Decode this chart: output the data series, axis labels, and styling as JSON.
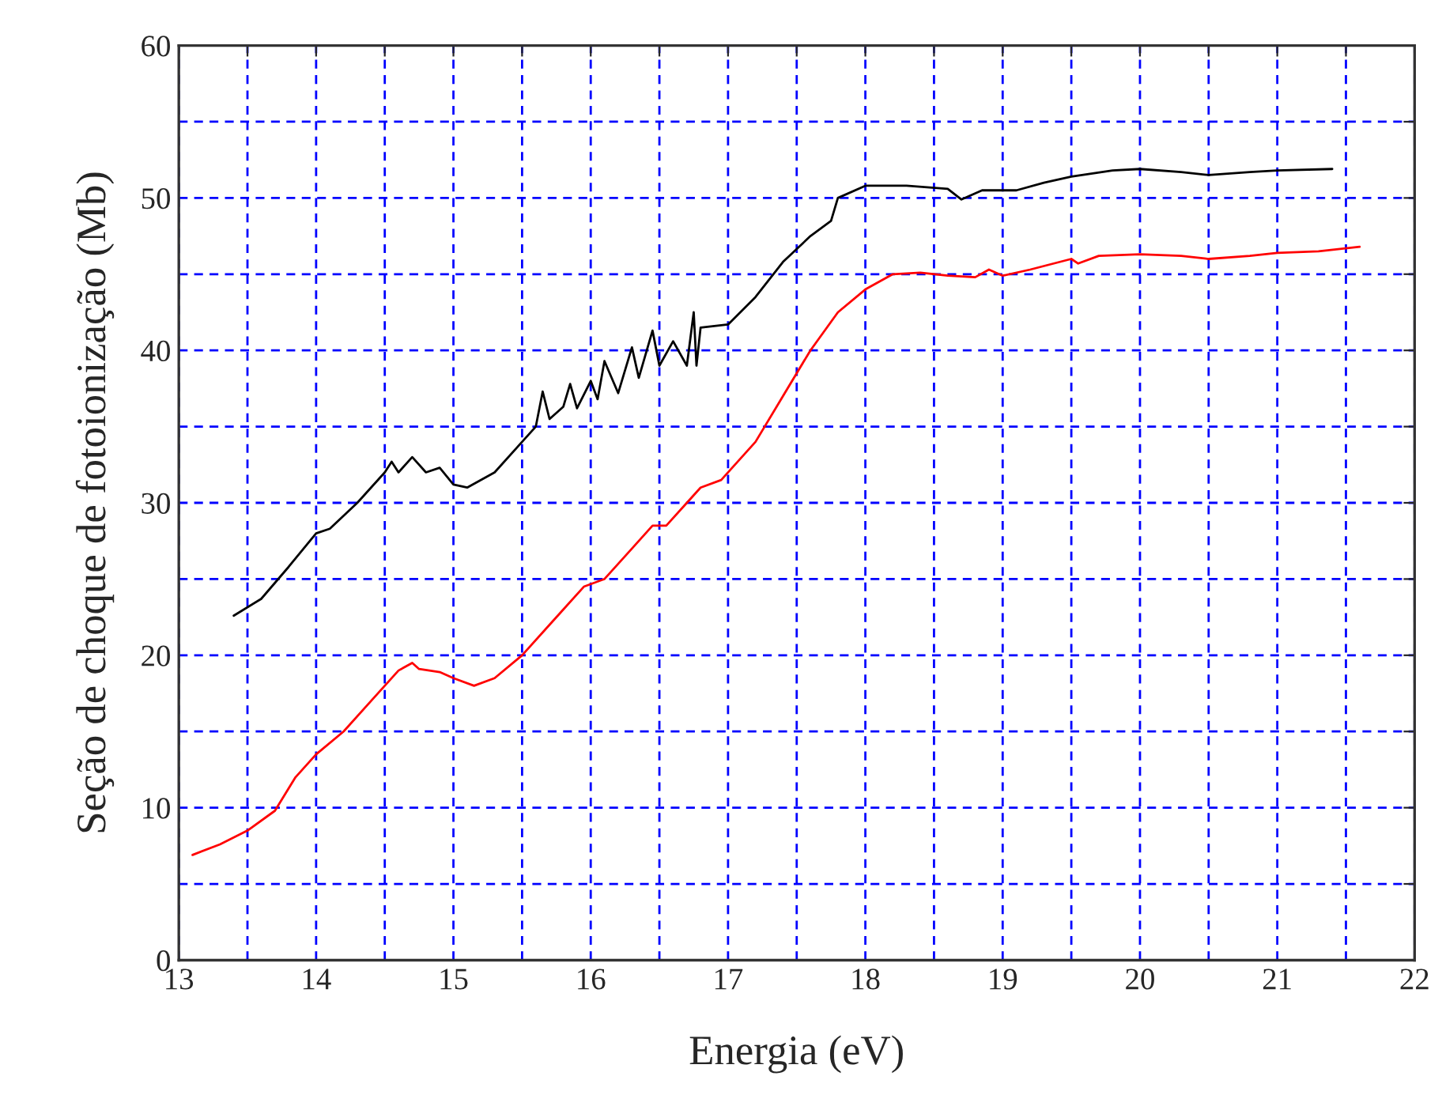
{
  "chart_data": {
    "type": "line",
    "xlabel": "Energia (eV)",
    "ylabel": "Seção de choque de fotoionização (Mb)",
    "xlim": [
      13,
      22
    ],
    "ylim": [
      0,
      60
    ],
    "xticks": [
      13,
      {
        "value": 13.5,
        "label": null
      },
      14,
      {
        "value": 14.5,
        "label": null
      },
      15,
      {
        "value": 15.5,
        "label": null
      },
      16,
      {
        "value": 16.5,
        "label": null
      },
      17,
      {
        "value": 17.5,
        "label": null
      },
      18,
      {
        "value": 18.5,
        "label": null
      },
      19,
      {
        "value": 19.5,
        "label": null
      },
      20,
      {
        "value": 20.5,
        "label": null
      },
      21,
      {
        "value": 21.5,
        "label": null
      },
      22
    ],
    "yticks": [
      0,
      {
        "value": 5,
        "label": null
      },
      10,
      {
        "value": 15,
        "label": null
      },
      20,
      {
        "value": 25,
        "label": null
      },
      30,
      {
        "value": 35,
        "label": null
      },
      40,
      {
        "value": 45,
        "label": null
      },
      50,
      {
        "value": 55,
        "label": null
      },
      60
    ],
    "grid": true,
    "marker": "none",
    "line_style": "solid",
    "series": [
      {
        "color": "#000000",
        "x": [
          13.4,
          13.6,
          13.8,
          14.0,
          14.1,
          14.3,
          14.5,
          14.55,
          14.6,
          14.7,
          14.8,
          14.9,
          15.0,
          15.1,
          15.3,
          15.5,
          15.6,
          15.65,
          15.7,
          15.8,
          15.85,
          15.9,
          16.0,
          16.05,
          16.1,
          16.2,
          16.3,
          16.35,
          16.45,
          16.5,
          16.6,
          16.7,
          16.75,
          16.77,
          16.8,
          17.0,
          17.2,
          17.4,
          17.6,
          17.75,
          17.8,
          18.0,
          18.3,
          18.6,
          18.7,
          18.85,
          19.1,
          19.3,
          19.5,
          19.8,
          20.0,
          20.3,
          20.5,
          20.8,
          21.0,
          21.4
        ],
        "values": [
          22.6,
          23.7,
          25.8,
          28,
          28.3,
          30,
          32,
          32.7,
          32.0,
          33,
          32,
          32.3,
          31.2,
          31.0,
          32,
          34,
          35,
          37.3,
          35.5,
          36.3,
          37.8,
          36.2,
          38,
          36.8,
          39.3,
          37.2,
          40.2,
          38.2,
          41.3,
          39,
          40.6,
          39,
          42.5,
          39,
          41.5,
          41.7,
          43.5,
          45.8,
          47.5,
          48.5,
          50,
          50.8,
          50.8,
          50.6,
          49.9,
          50.5,
          50.5,
          51.0,
          51.4,
          51.8,
          51.9,
          51.7,
          51.5,
          51.7,
          51.8,
          51.9
        ]
      },
      {
        "color": "#ff0000",
        "x": [
          13.1,
          13.3,
          13.5,
          13.7,
          13.85,
          14.0,
          14.2,
          14.4,
          14.6,
          14.7,
          14.75,
          14.9,
          15.0,
          15.15,
          15.3,
          15.5,
          15.7,
          15.8,
          15.95,
          16.1,
          16.3,
          16.45,
          16.55,
          16.7,
          16.8,
          16.95,
          17.2,
          17.4,
          17.6,
          17.8,
          18.0,
          18.2,
          18.4,
          18.6,
          18.8,
          18.9,
          19.0,
          19.2,
          19.5,
          19.55,
          19.7,
          20.0,
          20.3,
          20.5,
          20.8,
          21.0,
          21.3,
          21.6
        ],
        "values": [
          6.9,
          7.6,
          8.5,
          9.8,
          12,
          13.5,
          15,
          17,
          19,
          19.5,
          19.1,
          18.9,
          18.5,
          18.0,
          18.5,
          20,
          22,
          23,
          24.5,
          25,
          27,
          28.5,
          28.5,
          30,
          31,
          31.5,
          34,
          37,
          40,
          42.5,
          44,
          45,
          45.1,
          44.9,
          44.8,
          45.3,
          44.9,
          45.3,
          46,
          45.7,
          46.2,
          46.3,
          46.2,
          46.0,
          46.2,
          46.4,
          46.5,
          46.8
        ]
      }
    ]
  }
}
